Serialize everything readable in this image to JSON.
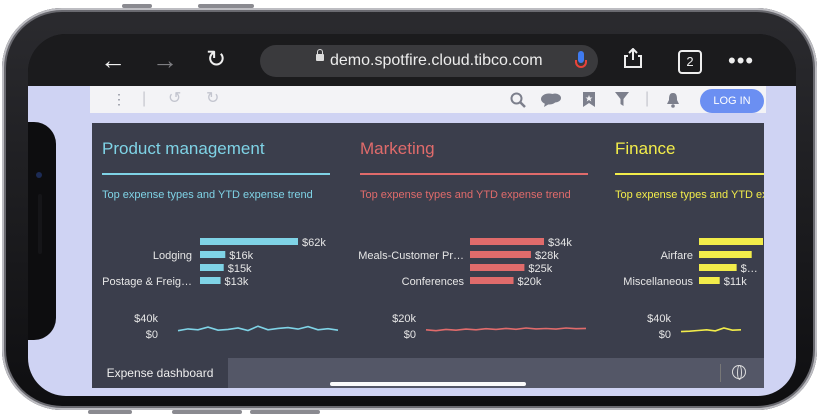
{
  "browser": {
    "url": "demo.spotfire.cloud.tibco.com",
    "tab_count": "2",
    "back_icon": "arrow-left",
    "forward_icon": "arrow-right",
    "reload_icon": "reload",
    "share_icon": "share",
    "more_icon": "ellipsis"
  },
  "toolbar": {
    "login_label": "LOG IN",
    "icons": [
      "menu-dots",
      "undo",
      "redo",
      "search",
      "comments",
      "bookmark",
      "filter",
      "notifications"
    ]
  },
  "panels": [
    {
      "title": "Product management",
      "subtitle": "Top expense types and YTD expense trend",
      "color": "#7fd3e6",
      "bars": [
        {
          "label": "",
          "value": 62,
          "display": "$62k"
        },
        {
          "label": "Lodging",
          "value": 16,
          "display": "$16k"
        },
        {
          "label": "",
          "value": 15,
          "display": "$15k"
        },
        {
          "label": "Postage & Freig…",
          "value": 13,
          "display": "$13k"
        }
      ],
      "trend_max": "$40k",
      "trend_min": "$0",
      "trend": [
        0.35,
        0.45,
        0.4,
        0.55,
        0.38,
        0.42,
        0.5,
        0.36,
        0.6,
        0.4,
        0.48,
        0.52,
        0.44,
        0.58,
        0.4,
        0.46,
        0.38
      ]
    },
    {
      "title": "Marketing",
      "subtitle": "Top expense types and YTD expense trend",
      "color": "#e06b6b",
      "bars": [
        {
          "label": "",
          "value": 34,
          "display": "$34k"
        },
        {
          "label": "Meals-Customer Pr…",
          "value": 28,
          "display": "$28k"
        },
        {
          "label": "",
          "value": 25,
          "display": "$25k"
        },
        {
          "label": "Conferences",
          "value": 20,
          "display": "$20k"
        }
      ],
      "trend_max": "$20k",
      "trend_min": "$0",
      "trend": [
        0.4,
        0.35,
        0.42,
        0.38,
        0.44,
        0.4,
        0.46,
        0.42,
        0.48,
        0.43,
        0.5,
        0.45,
        0.47,
        0.44,
        0.5,
        0.46,
        0.48
      ]
    },
    {
      "title": "Finance",
      "subtitle": "Top expense types and YTD expense trend",
      "color": "#f2ec4a",
      "bars": [
        {
          "label": "",
          "value": 34,
          "display": ""
        },
        {
          "label": "Airfare",
          "value": 28,
          "display": ""
        },
        {
          "label": "",
          "value": 20,
          "display": "$…"
        },
        {
          "label": "Miscellaneous",
          "value": 11,
          "display": "$11k"
        }
      ],
      "trend_max": "$40k",
      "trend_min": "$0",
      "trend": [
        0.3,
        0.32,
        0.36,
        0.4,
        0.34,
        0.5,
        0.38,
        0.4
      ]
    }
  ],
  "bottom": {
    "active_tab": "Expense dashboard"
  }
}
